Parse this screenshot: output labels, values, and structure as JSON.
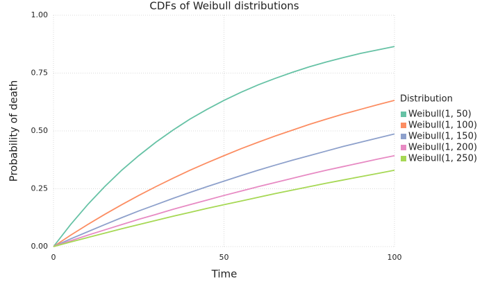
{
  "chart_data": {
    "type": "line",
    "title": "CDFs of Weibull distributions",
    "x_label": "Time",
    "y_label": "Probability of death",
    "legend_title": "Distribution",
    "x": [
      0,
      5,
      10,
      15,
      20,
      25,
      30,
      35,
      40,
      45,
      50,
      55,
      60,
      65,
      70,
      75,
      80,
      85,
      90,
      95,
      100
    ],
    "series": [
      {
        "name": "Weibull(1, 50)",
        "color": "#66c2a5",
        "values": [
          0,
          0.095,
          0.181,
          0.259,
          0.33,
          0.393,
          0.451,
          0.503,
          0.551,
          0.593,
          0.632,
          0.667,
          0.699,
          0.727,
          0.753,
          0.777,
          0.798,
          0.817,
          0.835,
          0.85,
          0.865
        ]
      },
      {
        "name": "Weibull(1, 100)",
        "color": "#fc8d62",
        "values": [
          0,
          0.049,
          0.095,
          0.139,
          0.181,
          0.221,
          0.259,
          0.295,
          0.33,
          0.362,
          0.393,
          0.423,
          0.451,
          0.478,
          0.503,
          0.528,
          0.551,
          0.573,
          0.593,
          0.613,
          0.632
        ]
      },
      {
        "name": "Weibull(1, 150)",
        "color": "#8da0cb",
        "values": [
          0,
          0.033,
          0.064,
          0.095,
          0.125,
          0.154,
          0.181,
          0.208,
          0.234,
          0.259,
          0.283,
          0.307,
          0.33,
          0.352,
          0.373,
          0.393,
          0.413,
          0.433,
          0.451,
          0.469,
          0.487
        ]
      },
      {
        "name": "Weibull(1, 200)",
        "color": "#e78ac3",
        "values": [
          0,
          0.025,
          0.049,
          0.072,
          0.095,
          0.118,
          0.139,
          0.161,
          0.181,
          0.201,
          0.221,
          0.24,
          0.259,
          0.277,
          0.295,
          0.313,
          0.33,
          0.346,
          0.362,
          0.378,
          0.393
        ]
      },
      {
        "name": "Weibull(1, 250)",
        "color": "#a6d854",
        "values": [
          0,
          0.02,
          0.039,
          0.058,
          0.077,
          0.095,
          0.113,
          0.131,
          0.148,
          0.165,
          0.181,
          0.197,
          0.213,
          0.229,
          0.244,
          0.259,
          0.274,
          0.288,
          0.302,
          0.316,
          0.33
        ]
      }
    ],
    "xlim": [
      0,
      100
    ],
    "xticks": [
      0,
      50,
      100
    ],
    "ylim": [
      0,
      1
    ],
    "yticks": [
      {
        "value": 0,
        "label": "0.00"
      },
      {
        "value": 0.25,
        "label": "0.25"
      },
      {
        "value": 0.5,
        "label": "0.50"
      },
      {
        "value": 0.75,
        "label": "0.75"
      },
      {
        "value": 1,
        "label": "1.00"
      }
    ],
    "grid": true
  }
}
